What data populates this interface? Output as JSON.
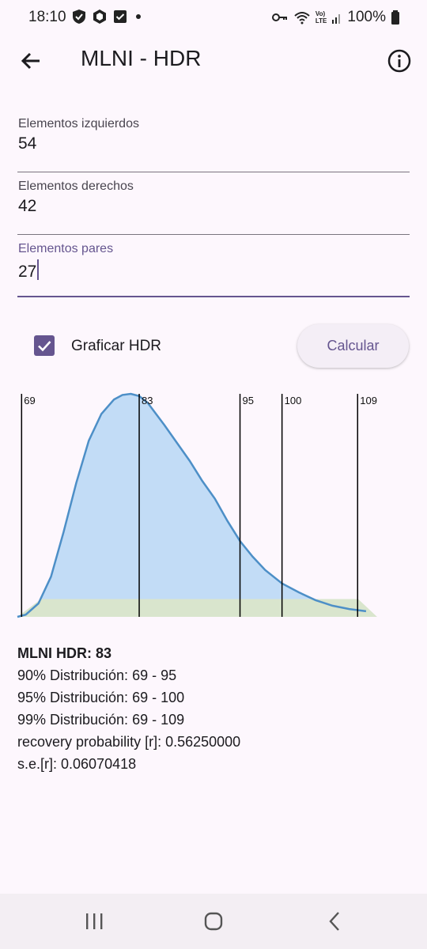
{
  "status_bar": {
    "time": "18:10",
    "battery_text": "100%",
    "network_text_top": "Vo)",
    "network_text_bottom": "LTE"
  },
  "app_bar": {
    "title": "MLNI - HDR",
    "back_icon": "arrow-back-icon",
    "info_icon": "info-icon"
  },
  "form": {
    "left": {
      "label": "Elementos izquierdos",
      "value": "54"
    },
    "right": {
      "label": "Elementos derechos",
      "value": "42"
    },
    "pairs": {
      "label": "Elementos pares",
      "value": "27"
    }
  },
  "options": {
    "plot_hdr_label": "Graficar HDR",
    "plot_hdr_checked": true,
    "calculate_label": "Calcular"
  },
  "chart_data": {
    "type": "area",
    "x_range": [
      68.5,
      115
    ],
    "markers": [
      {
        "x": 69,
        "label": "69"
      },
      {
        "x": 83,
        "label": "83"
      },
      {
        "x": 95,
        "label": "95"
      },
      {
        "x": 100,
        "label": "100"
      },
      {
        "x": 109,
        "label": "109"
      }
    ],
    "curve": {
      "x": [
        68.5,
        69.5,
        71,
        72.5,
        74,
        75.5,
        77,
        78.5,
        80,
        81,
        82,
        83,
        84,
        85,
        86,
        87.5,
        89,
        90.5,
        92,
        93.5,
        95,
        96.5,
        98,
        100,
        102,
        104,
        106,
        108,
        110
      ],
      "y": [
        0.0,
        0.01,
        0.06,
        0.18,
        0.38,
        0.6,
        0.79,
        0.91,
        0.975,
        0.995,
        1.0,
        0.99,
        0.96,
        0.91,
        0.86,
        0.78,
        0.7,
        0.61,
        0.53,
        0.43,
        0.34,
        0.27,
        0.21,
        0.15,
        0.11,
        0.075,
        0.05,
        0.035,
        0.025
      ]
    },
    "band_height": 0.08,
    "colors": {
      "line": "#4d8fc7",
      "fill": "#c2dcf6",
      "band": "#d9e5cd",
      "marker": "#000000"
    }
  },
  "results": {
    "hdr": "MLNI HDR: 83",
    "d90": "90% Distribución: 69 - 95",
    "d95": "95% Distribución: 69 - 100",
    "d99": "99% Distribución: 69 - 109",
    "recovery": "recovery probability [r]: 0.56250000",
    "se": "s.e.[r]: 0.06070418"
  },
  "nav_bar": {
    "recents_icon": "recents-icon",
    "home_icon": "home-icon",
    "back_icon": "nav-back-icon"
  },
  "colors": {
    "background": "#fdf7fd",
    "accent": "#65558f"
  }
}
